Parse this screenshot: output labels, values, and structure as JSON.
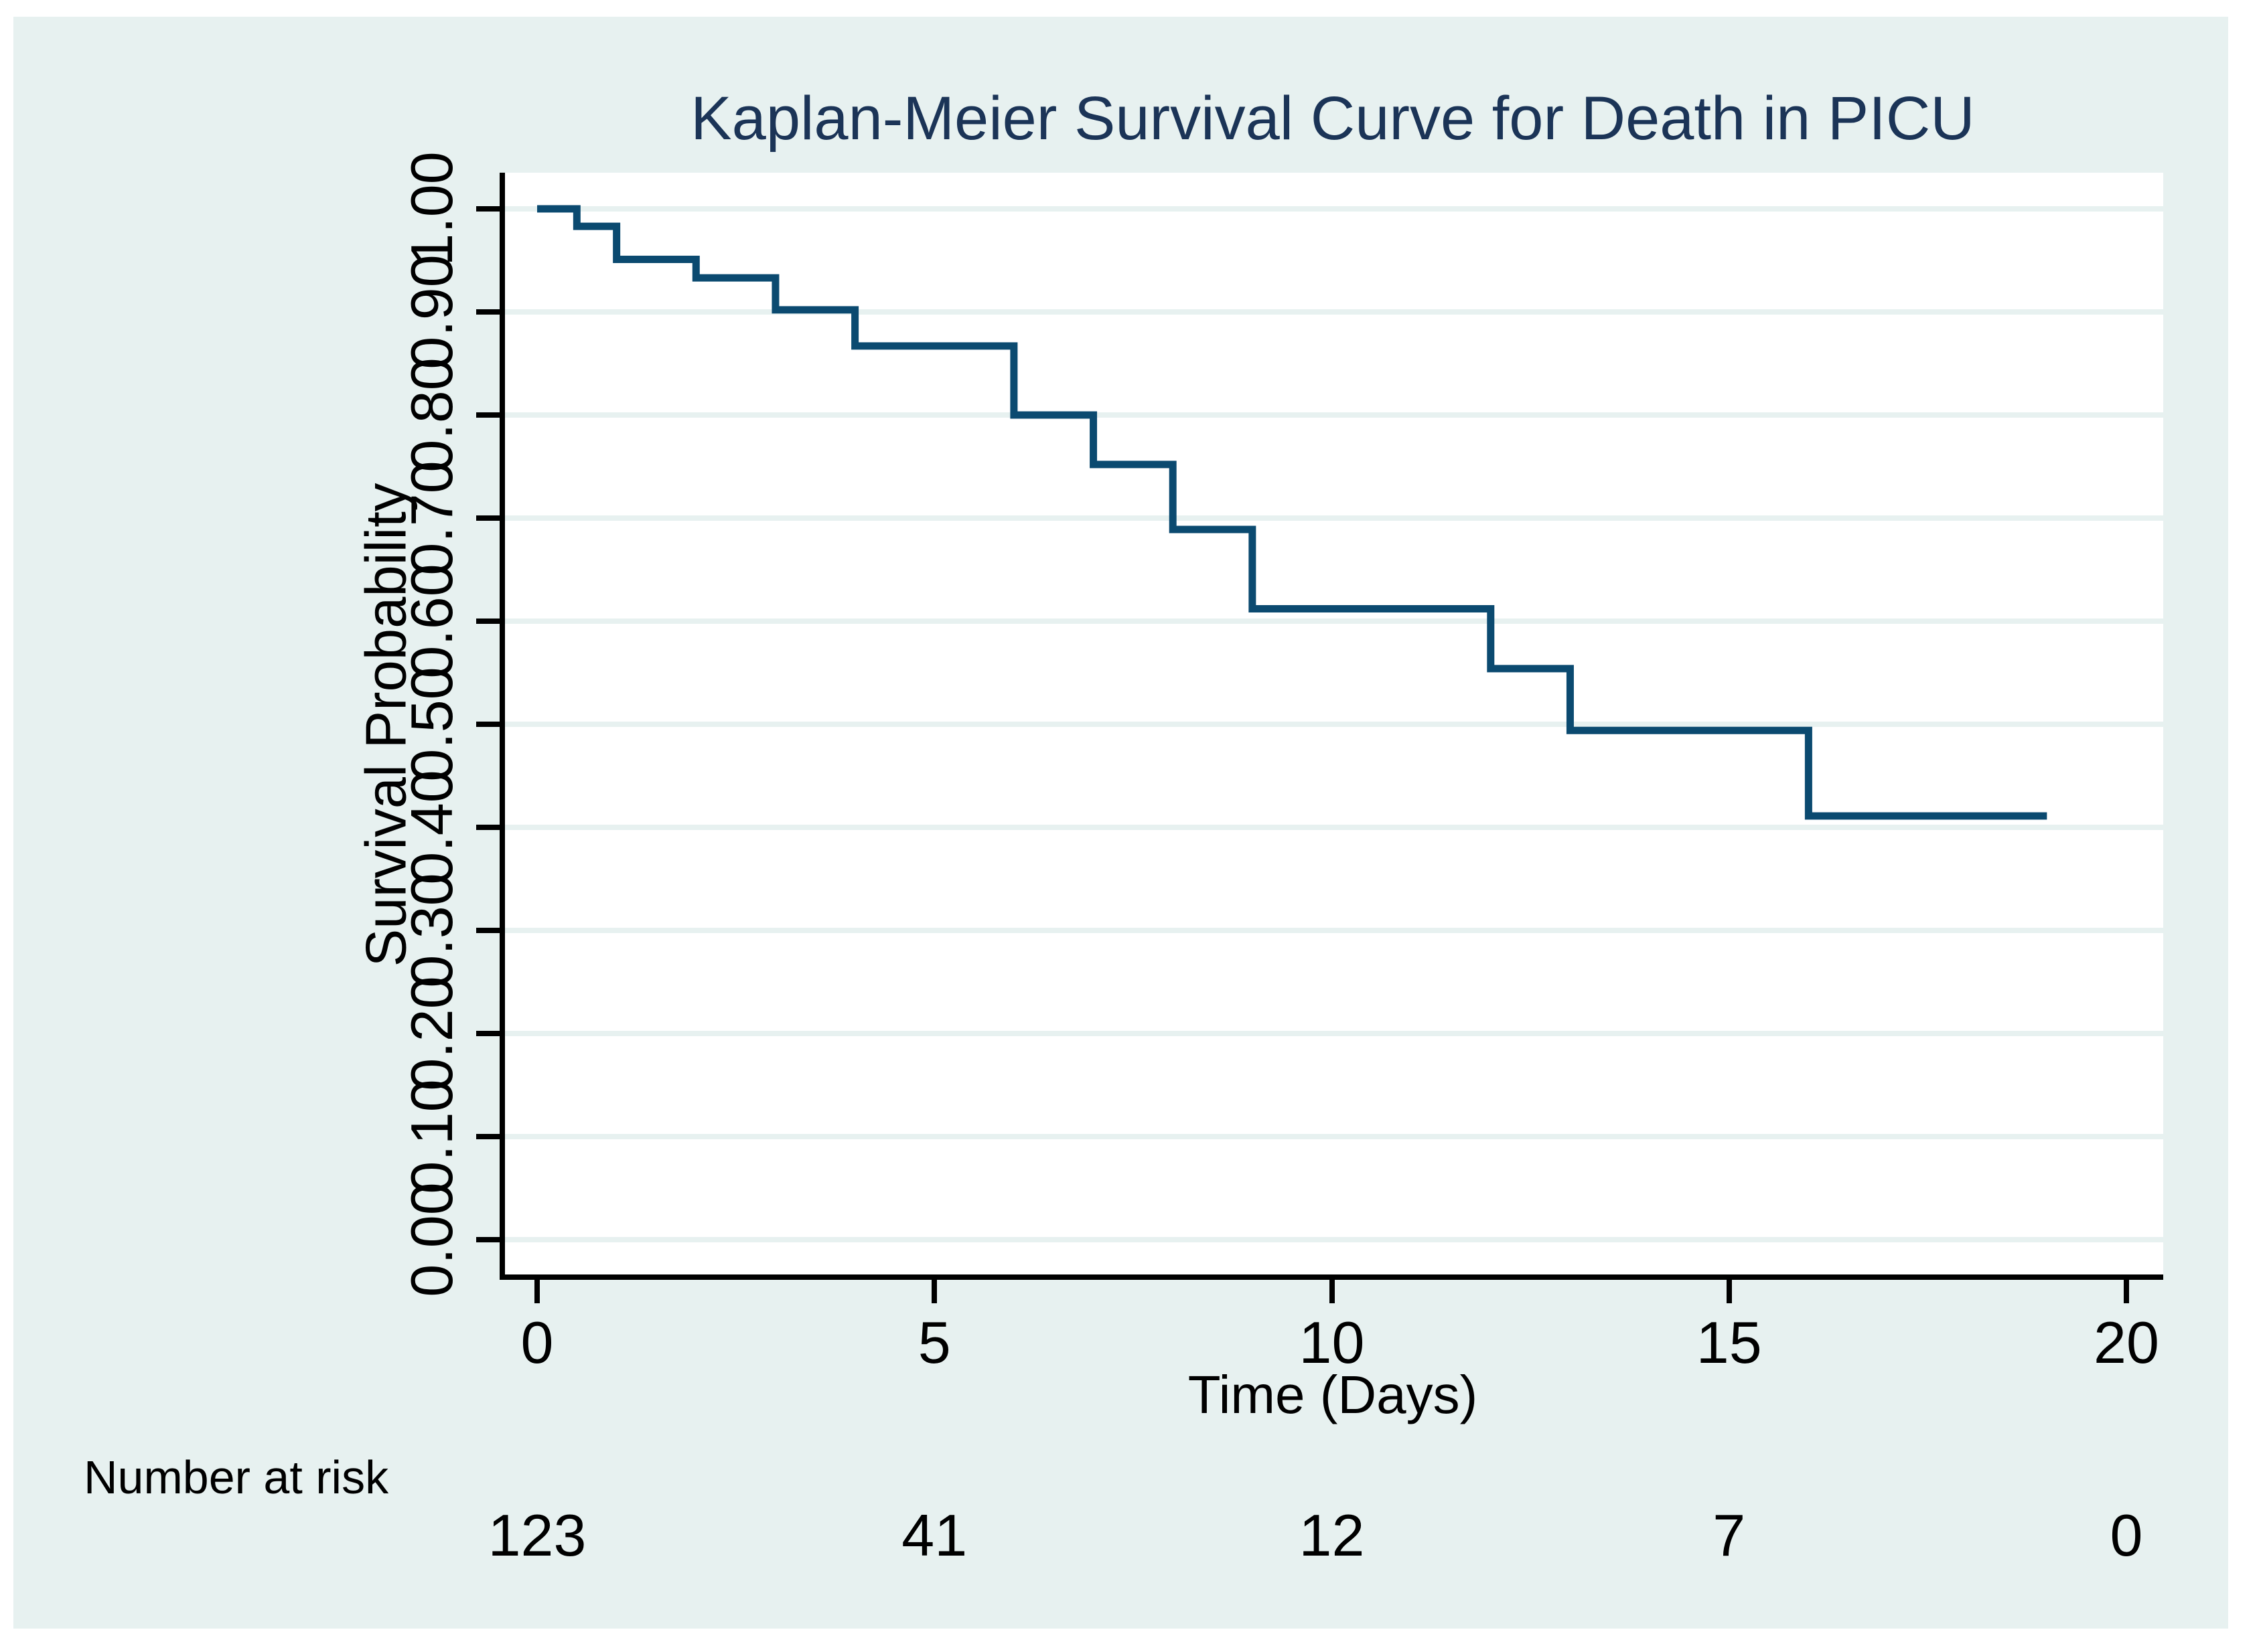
{
  "figure": {
    "colors": {
      "background": "#e7f1f0",
      "plot_background": "#ffffff",
      "gridline": "#e7f1f0",
      "curve": "#0b4a70",
      "title_text": "#1b3457",
      "axis_text": "#000000"
    }
  },
  "chart_data": {
    "type": "line",
    "subtype": "kaplan-meier-step",
    "title": "Kaplan-Meier Survival Curve for Death in PICU",
    "xlabel": "Time (Days)",
    "ylabel": "Survival Probability",
    "xlim": [
      0,
      20
    ],
    "ylim": [
      0.0,
      1.0
    ],
    "x_ticks": [
      0,
      5,
      10,
      15,
      20
    ],
    "y_ticks": [
      "0.00",
      "0.10",
      "0.20",
      "0.30",
      "0.40",
      "0.50",
      "0.60",
      "0.70",
      "0.80",
      "0.90",
      "1.00"
    ],
    "grid": "horizontal-only",
    "legend": "none",
    "km_curve": {
      "points": [
        {
          "time": 0,
          "survival": 1.0
        },
        {
          "time": 0.5,
          "survival": 0.983
        },
        {
          "time": 1,
          "survival": 0.951
        },
        {
          "time": 2,
          "survival": 0.933
        },
        {
          "time": 3,
          "survival": 0.902
        },
        {
          "time": 4,
          "survival": 0.867
        },
        {
          "time": 6,
          "survival": 0.8
        },
        {
          "time": 7,
          "survival": 0.752
        },
        {
          "time": 8,
          "survival": 0.689
        },
        {
          "time": 9,
          "survival": 0.612
        },
        {
          "time": 12,
          "survival": 0.554
        },
        {
          "time": 13,
          "survival": 0.494
        },
        {
          "time": 16,
          "survival": 0.411
        }
      ],
      "end_time": 19
    },
    "number_at_risk": {
      "label": "Number at risk",
      "times": [
        0,
        5,
        10,
        15,
        20
      ],
      "counts": [
        123,
        41,
        12,
        7,
        0
      ]
    }
  }
}
